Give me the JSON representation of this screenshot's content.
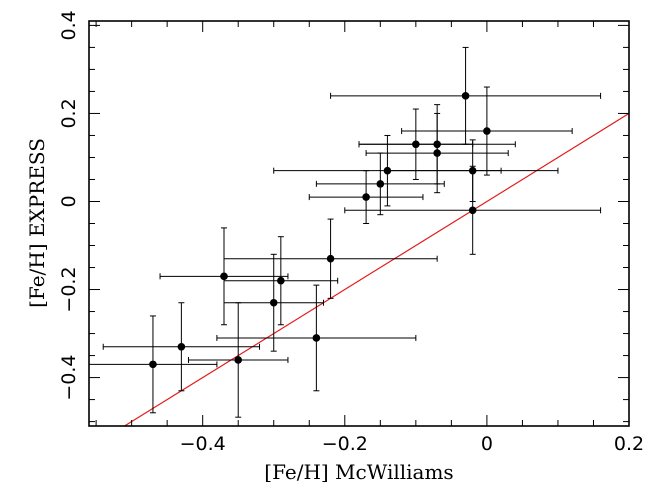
{
  "chart_data": {
    "type": "scatter",
    "xlabel": "[Fe/H] McWilliams",
    "ylabel": "[Fe/H] EXPRESS",
    "xlim": [
      -0.56,
      0.2
    ],
    "ylim": [
      -0.51,
      0.41
    ],
    "x_ticks": [
      -0.4,
      -0.2,
      0,
      0.2
    ],
    "x_tick_labels": [
      "−0.4",
      "−0.2",
      "0",
      "0.2"
    ],
    "y_ticks": [
      -0.4,
      -0.2,
      0,
      0.2,
      0.4
    ],
    "y_tick_labels": [
      "−0.4",
      "−0.2",
      "0",
      "0.2",
      "0.4"
    ],
    "grid": false,
    "reference_line": {
      "from": [
        -0.56,
        -0.56
      ],
      "to": [
        0.2,
        0.2
      ],
      "color": "#e31a1c"
    },
    "marker_color": "#000000",
    "points": [
      {
        "x": -0.47,
        "y": -0.37,
        "xerr": 0.09,
        "yerr": 0.11
      },
      {
        "x": -0.43,
        "y": -0.33,
        "xerr": 0.11,
        "yerr": 0.1
      },
      {
        "x": -0.35,
        "y": -0.36,
        "xerr": 0.07,
        "yerr": 0.13
      },
      {
        "x": -0.37,
        "y": -0.17,
        "xerr": 0.09,
        "yerr": 0.11
      },
      {
        "x": -0.3,
        "y": -0.23,
        "xerr": 0.07,
        "yerr": 0.11
      },
      {
        "x": -0.29,
        "y": -0.18,
        "xerr": 0.08,
        "yerr": 0.1
      },
      {
        "x": -0.24,
        "y": -0.31,
        "xerr": 0.14,
        "yerr": 0.12
      },
      {
        "x": -0.22,
        "y": -0.13,
        "xerr": 0.15,
        "yerr": 0.09
      },
      {
        "x": -0.17,
        "y": 0.01,
        "xerr": 0.08,
        "yerr": 0.06
      },
      {
        "x": -0.15,
        "y": 0.04,
        "xerr": 0.09,
        "yerr": 0.07
      },
      {
        "x": -0.14,
        "y": 0.07,
        "xerr": 0.16,
        "yerr": 0.08
      },
      {
        "x": -0.1,
        "y": 0.13,
        "xerr": 0.08,
        "yerr": 0.08
      },
      {
        "x": -0.07,
        "y": 0.13,
        "xerr": 0.11,
        "yerr": 0.09
      },
      {
        "x": -0.07,
        "y": 0.11,
        "xerr": 0.1,
        "yerr": 0.09
      },
      {
        "x": -0.03,
        "y": 0.24,
        "xerr": 0.19,
        "yerr": 0.11
      },
      {
        "x": 0.0,
        "y": 0.16,
        "xerr": 0.12,
        "yerr": 0.1
      },
      {
        "x": -0.02,
        "y": 0.07,
        "xerr": 0.12,
        "yerr": 0.07
      },
      {
        "x": -0.02,
        "y": -0.02,
        "xerr": 0.18,
        "yerr": 0.1
      }
    ]
  }
}
